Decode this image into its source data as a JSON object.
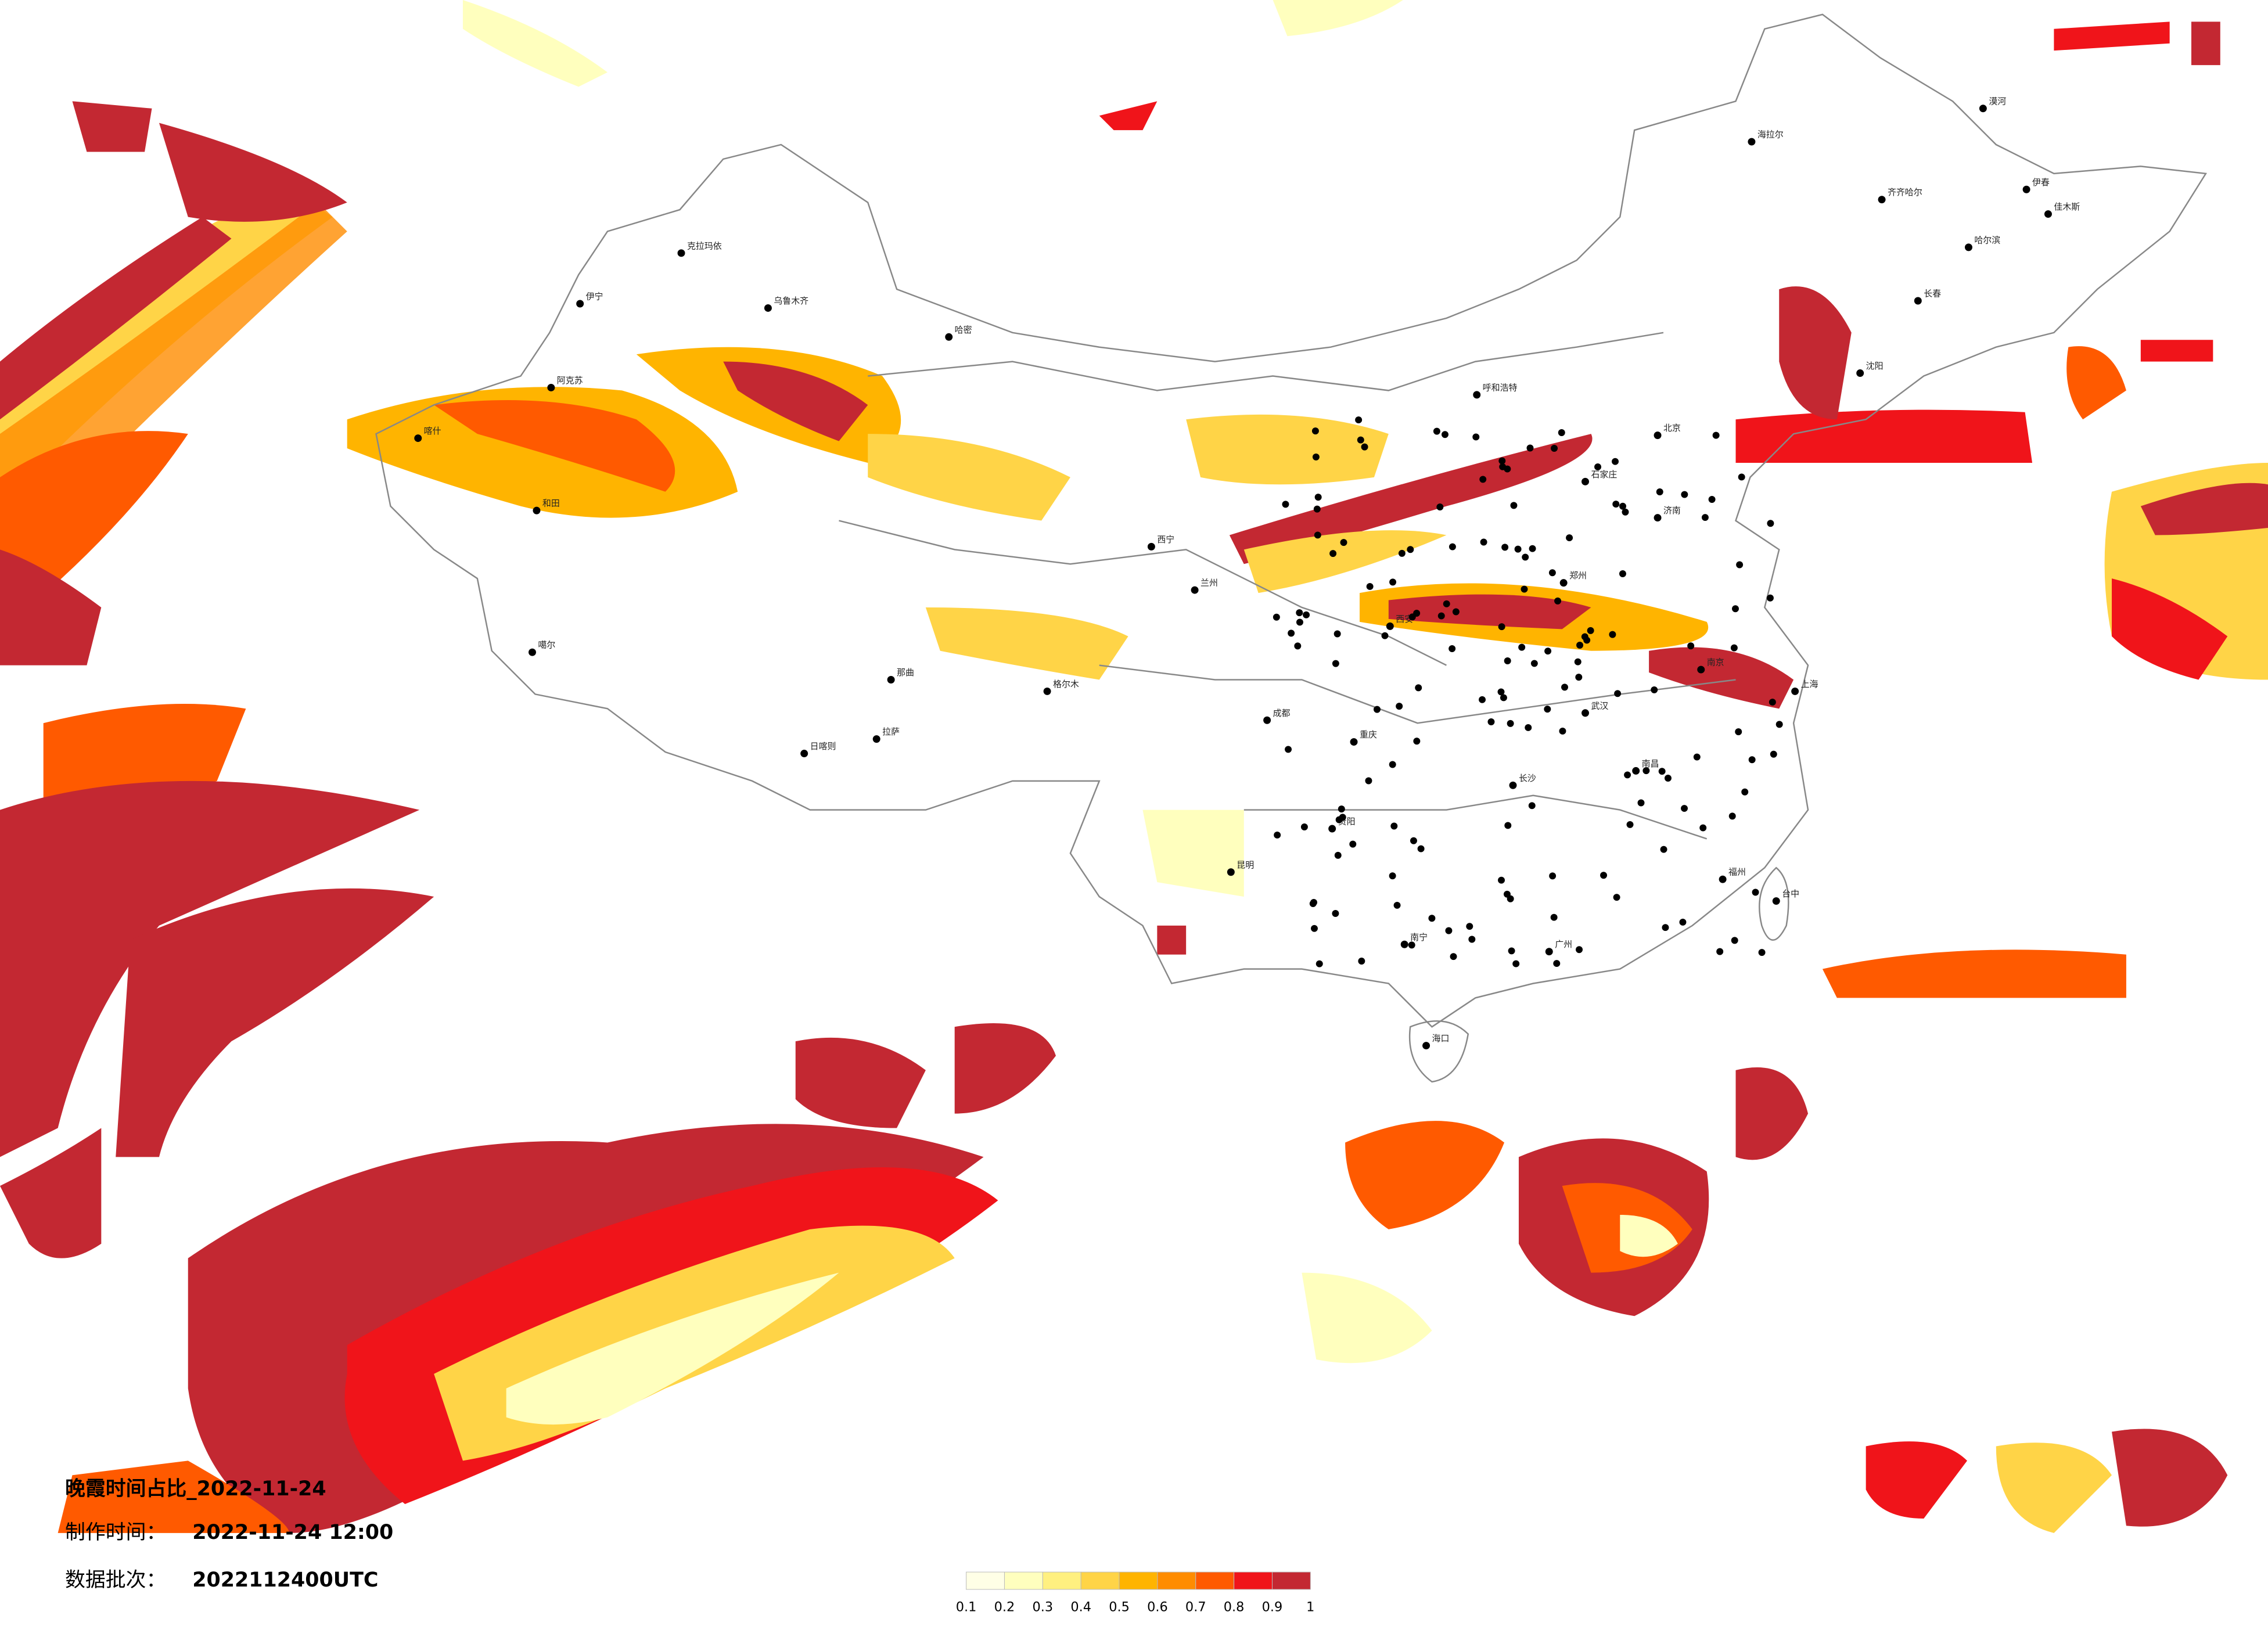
{
  "title": "晚霞时间占比_2022-11-24",
  "made_label": "制作时间：",
  "made_time": "2022-11-24 12:00",
  "batch_label": "数据批次：",
  "batch": "2022112400UTC",
  "legend": {
    "ticks": [
      0.1,
      0.2,
      0.3,
      0.4,
      0.5,
      0.6,
      0.7,
      0.8,
      0.9,
      1
    ],
    "colors": [
      "#ffffe6",
      "#ffffbe",
      "#fff080",
      "#ffd447",
      "#ffb400",
      "#ff8c00",
      "#ff5a00",
      "#f0141a",
      "#c32832"
    ]
  },
  "cities": [
    "克拉玛依",
    "伊宁",
    "乌鲁木齐",
    "阿克苏",
    "喀什",
    "和田",
    "哈密",
    "噶尔",
    "日喀则",
    "拉萨",
    "那曲",
    "格尔木",
    "西宁",
    "兰州",
    "呼和浩特",
    "北京",
    "石家庄",
    "济南",
    "郑州",
    "西安",
    "成都",
    "重庆",
    "武汉",
    "南京",
    "上海",
    "长沙",
    "贵阳",
    "昆明",
    "南宁",
    "广州",
    "福州",
    "南昌",
    "台中",
    "海口",
    "沈阳",
    "长春",
    "哈尔滨",
    "齐齐哈尔",
    "海拉尔",
    "漠河",
    "伊春",
    "佳木斯"
  ]
}
